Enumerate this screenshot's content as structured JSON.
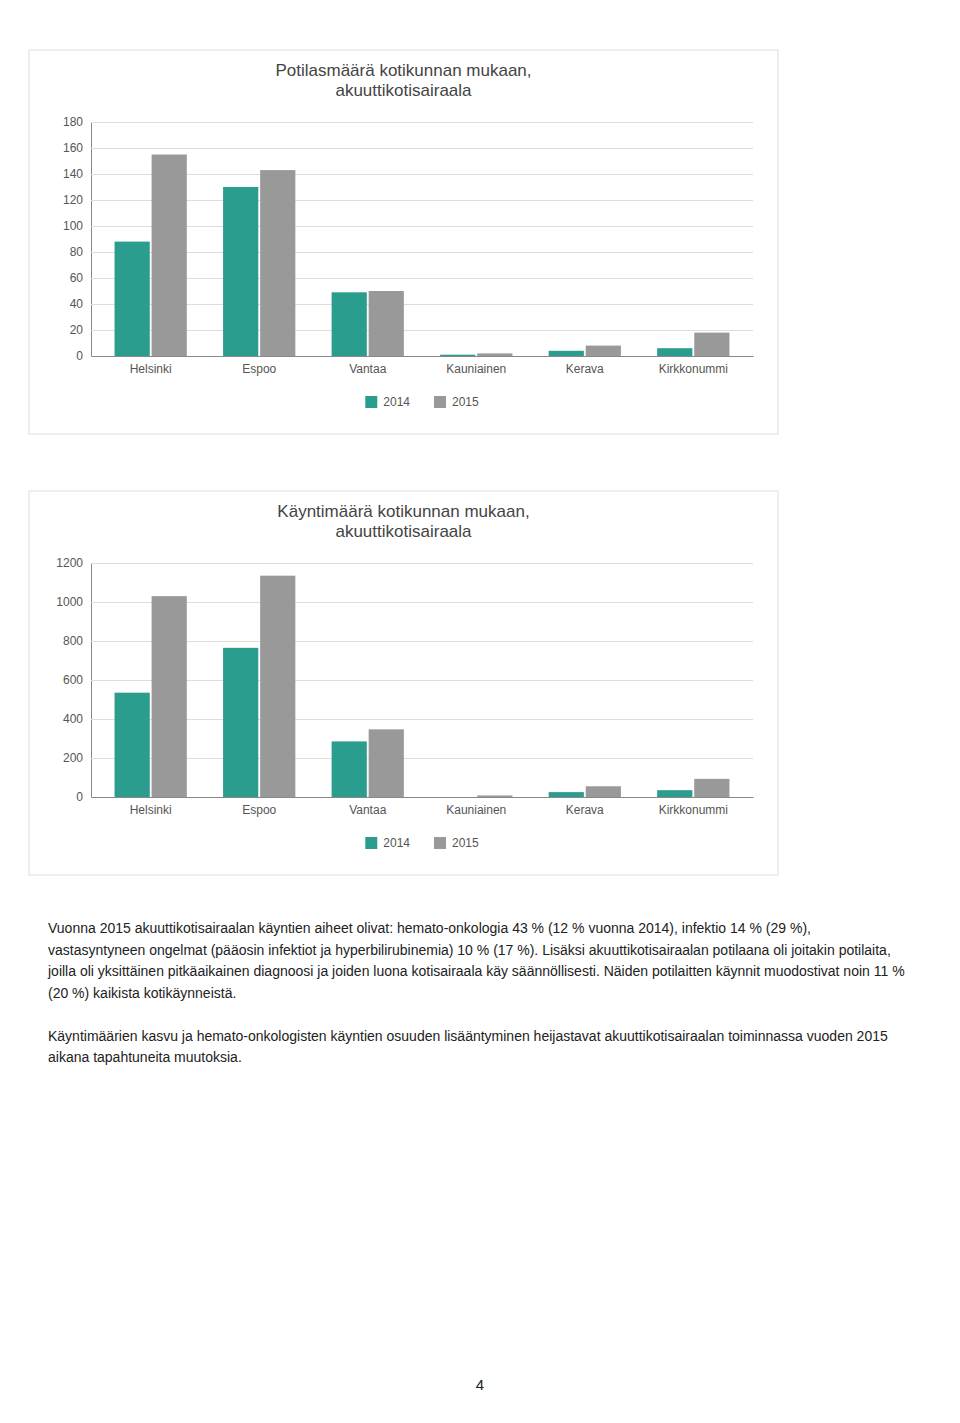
{
  "chart_data": [
    {
      "type": "bar",
      "title": "Potilasmäärä kotikunnan mukaan,\nakuuttikotisairaala",
      "categories": [
        "Helsinki",
        "Espoo",
        "Vantaa",
        "Kauniainen",
        "Kerava",
        "Kirkkonummi"
      ],
      "series": [
        {
          "name": "2014",
          "color": "#2a9d8f",
          "values": [
            88,
            130,
            49,
            1,
            4,
            6
          ]
        },
        {
          "name": "2015",
          "color": "#999999",
          "values": [
            155,
            143,
            50,
            2,
            8,
            18
          ]
        }
      ],
      "ylim": [
        0,
        180
      ],
      "yticks": [
        0,
        20,
        40,
        60,
        80,
        100,
        120,
        140,
        160,
        180
      ],
      "grid": true,
      "legend": "bottom"
    },
    {
      "type": "bar",
      "title": "Käyntimäärä kotikunnan mukaan,\nakuuttikotisairaala",
      "categories": [
        "Helsinki",
        "Espoo",
        "Vantaa",
        "Kauniainen",
        "Kerava",
        "Kirkkonummi"
      ],
      "series": [
        {
          "name": "2014",
          "color": "#2a9d8f",
          "values": [
            535,
            765,
            285,
            0,
            25,
            35
          ]
        },
        {
          "name": "2015",
          "color": "#999999",
          "values": [
            1030,
            1135,
            347,
            8,
            55,
            93
          ]
        }
      ],
      "ylim": [
        0,
        1200
      ],
      "yticks": [
        0,
        200,
        400,
        600,
        800,
        1000,
        1200
      ],
      "grid": true,
      "legend": "bottom"
    }
  ],
  "paragraphs": [
    "Vuonna 2015 akuuttikotisairaalan käyntien aiheet olivat: hemato-onkologia 43 % (12 % vuonna 2014), infektio 14 % (29 %), vastasyntyneen ongelmat (pääosin infektiot ja hyperbilirubinemia) 10 % (17 %). Lisäksi akuuttikotisairaalan potilaana oli joitakin potilaita, joilla oli yksittäinen pitkäaikainen diagnoosi ja joiden luona kotisairaala käy säännöllisesti. Näiden potilaitten käynnit muodostivat noin 11 % (20 %) kaikista kotikäynneistä.",
    "Käyntimäärien kasvu ja hemato-onkologisten käyntien osuuden lisääntyminen heijastavat akuuttikotisairaalan toiminnassa vuoden 2015 aikana tapahtuneita muutoksia."
  ],
  "page_number": "4"
}
